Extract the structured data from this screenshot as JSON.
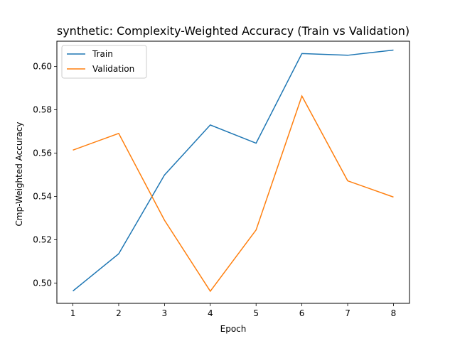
{
  "chart_data": {
    "type": "line",
    "title": "synthetic: Complexity-Weighted Accuracy (Train vs Validation)",
    "xlabel": "Epoch",
    "ylabel": "Cmp-Weighted Accuracy",
    "x": [
      1,
      2,
      3,
      4,
      5,
      6,
      7,
      8
    ],
    "xticks": [
      1,
      2,
      3,
      4,
      5,
      6,
      7,
      8
    ],
    "yticks": [
      0.5,
      0.52,
      0.54,
      0.56,
      0.58,
      0.6
    ],
    "xlim": [
      0.65,
      8.35
    ],
    "ylim": [
      0.4906,
      0.6117
    ],
    "grid": false,
    "legend_position": "top-left",
    "series": [
      {
        "name": "Train",
        "color": "#1f77b4",
        "values": [
          0.4963,
          0.5135,
          0.5499,
          0.573,
          0.5646,
          0.606,
          0.6052,
          0.6076
        ]
      },
      {
        "name": "Validation",
        "color": "#ff7f0e",
        "values": [
          0.5614,
          0.5691,
          0.529,
          0.4962,
          0.5245,
          0.5864,
          0.5472,
          0.5397
        ]
      }
    ]
  }
}
